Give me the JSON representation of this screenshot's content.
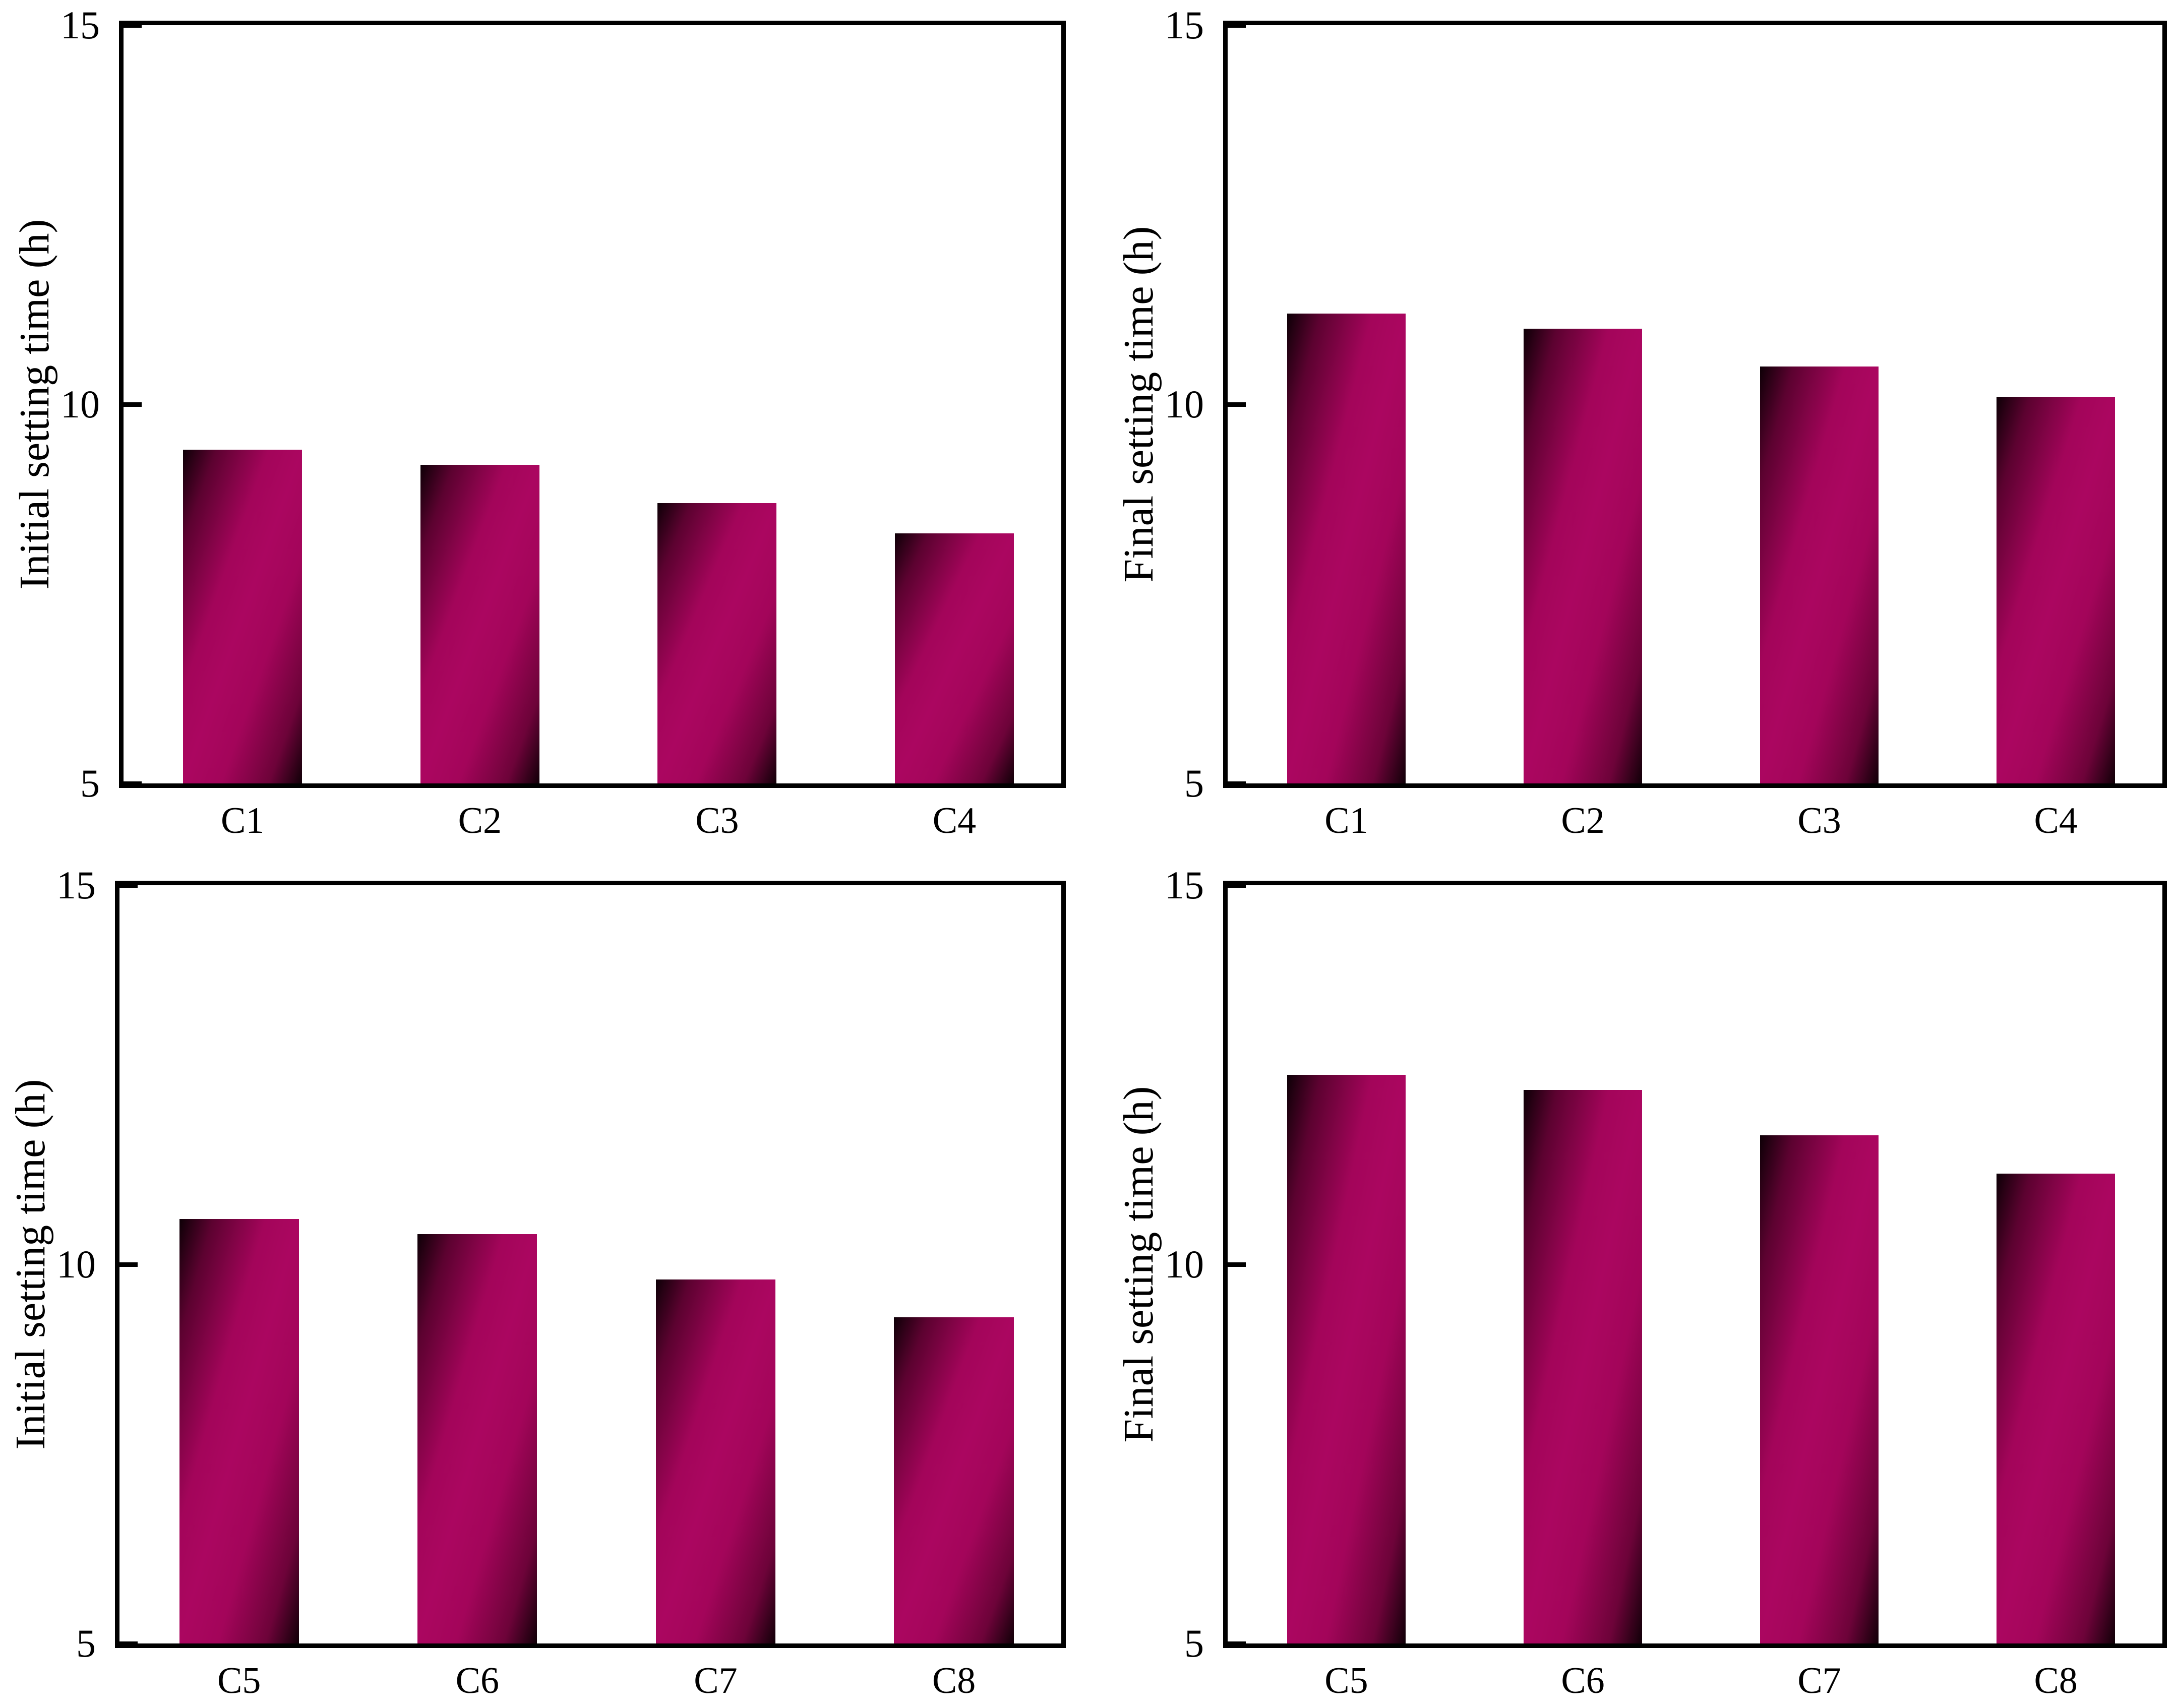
{
  "figure": {
    "background_color": "#ffffff",
    "frame_color": "#000000",
    "text_color": "#000000",
    "bar_gradient": {
      "dark_corner": "#0d0006",
      "bright_mid": "#ab0660",
      "mid": "#a3055a",
      "direction": "diagonal top-left to bottom-right"
    }
  },
  "chart_data": [
    {
      "type": "bar",
      "panel": "top-left",
      "title": "",
      "xlabel": "",
      "ylabel": "Initial setting time (h)",
      "categories": [
        "C1",
        "C2",
        "C3",
        "C4"
      ],
      "values": [
        9.4,
        9.2,
        8.7,
        8.3
      ],
      "ylim": [
        5,
        15
      ],
      "yticks": [
        5,
        10,
        15
      ],
      "grid": false,
      "legend": "none",
      "bar_centers": [
        0.127,
        0.38,
        0.633,
        0.886
      ],
      "bar_width_frac": 0.127
    },
    {
      "type": "bar",
      "panel": "top-right",
      "title": "",
      "xlabel": "",
      "ylabel": "Final setting time (h)",
      "categories": [
        "C1",
        "C2",
        "C3",
        "C4"
      ],
      "values": [
        11.2,
        11.0,
        10.5,
        10.1
      ],
      "ylim": [
        5,
        15
      ],
      "yticks": [
        5,
        10,
        15
      ],
      "grid": false,
      "legend": "none",
      "bar_centers": [
        0.127,
        0.38,
        0.633,
        0.886
      ],
      "bar_width_frac": 0.127
    },
    {
      "type": "bar",
      "panel": "bottom-left",
      "title": "",
      "xlabel": "",
      "ylabel": "Initial setting time (h)",
      "categories": [
        "C5",
        "C6",
        "C7",
        "C8"
      ],
      "values": [
        10.6,
        10.4,
        9.8,
        9.3
      ],
      "ylim": [
        5,
        15
      ],
      "yticks": [
        5,
        10,
        15
      ],
      "grid": false,
      "legend": "none",
      "bar_centers": [
        0.127,
        0.38,
        0.633,
        0.886
      ],
      "bar_width_frac": 0.127
    },
    {
      "type": "bar",
      "panel": "bottom-right",
      "title": "",
      "xlabel": "",
      "ylabel": "Final setting time (h)",
      "categories": [
        "C5",
        "C6",
        "C7",
        "C8"
      ],
      "values": [
        12.5,
        12.3,
        11.7,
        11.2
      ],
      "ylim": [
        5,
        15
      ],
      "yticks": [
        5,
        10,
        15
      ],
      "grid": false,
      "legend": "none",
      "bar_centers": [
        0.127,
        0.38,
        0.633,
        0.886
      ],
      "bar_width_frac": 0.127
    }
  ]
}
